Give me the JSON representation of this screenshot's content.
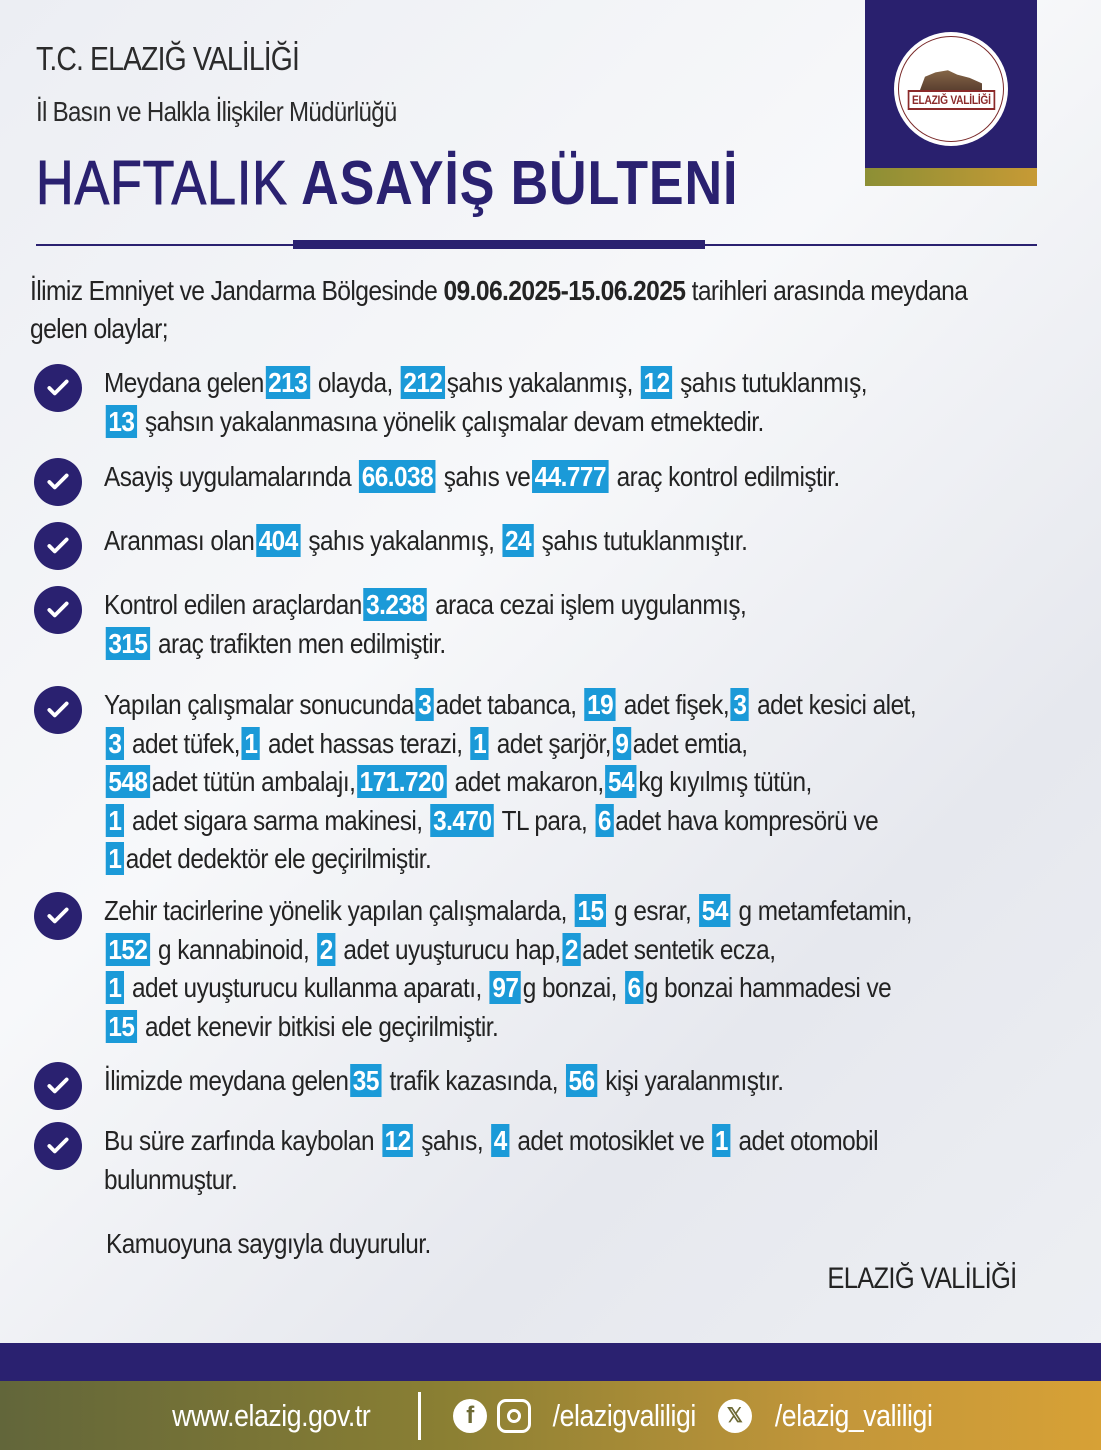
{
  "header": {
    "org": "T.C. ELAZIĞ VALİLİĞİ",
    "department": "İl Basın ve Halkla İlişkiler Müdürlüğü",
    "title_part1": "HAFTALIK",
    "title_part2": "ASAYİŞ BÜLTENİ",
    "logo_text": "ELAZIĞ VALİLİĞİ"
  },
  "intro": {
    "before": "İlimiz Emniyet ve Jandarma Bölgesinde ",
    "dates": "09.06.2025-15.06.2025",
    "after": " tarihleri arasında meydana",
    "line2": "gelen olaylar;"
  },
  "colors": {
    "navy": "#2a2170",
    "highlight": "#1b9ad8",
    "gold": "#c79a35"
  },
  "bullets": [
    {
      "lines": [
        [
          {
            "t": "Meydana gelen"
          },
          {
            "n": "213"
          },
          {
            "t": " olayda, "
          },
          {
            "n": "212"
          },
          {
            "t": "şahıs yakalanmış, "
          },
          {
            "n": "12"
          },
          {
            "t": " şahıs tutuklanmış,"
          }
        ],
        [
          {
            "n": "13"
          },
          {
            "t": " şahsın yakalanmasına yönelik çalışmalar devam etmektedir."
          }
        ]
      ]
    },
    {
      "lines": [
        [
          {
            "t": "Asayiş uygulamalarında "
          },
          {
            "n": "66.038"
          },
          {
            "t": " şahıs ve"
          },
          {
            "n": "44.777"
          },
          {
            "t": " araç kontrol edilmiştir."
          }
        ]
      ]
    },
    {
      "lines": [
        [
          {
            "t": "Aranması olan"
          },
          {
            "n": "404"
          },
          {
            "t": " şahıs yakalanmış, "
          },
          {
            "n": "24"
          },
          {
            "t": " şahıs tutuklanmıştır."
          }
        ]
      ]
    },
    {
      "lines": [
        [
          {
            "t": "Kontrol edilen araçlardan"
          },
          {
            "n": "3.238"
          },
          {
            "t": " araca cezai işlem uygulanmış,"
          }
        ],
        [
          {
            "n": "315"
          },
          {
            "t": " araç trafikten men edilmiştir."
          }
        ]
      ]
    },
    {
      "lines": [
        [
          {
            "t": "Yapılan çalışmalar sonucunda"
          },
          {
            "n": "3"
          },
          {
            "t": "adet tabanca, "
          },
          {
            "n": "19"
          },
          {
            "t": " adet fişek,"
          },
          {
            "n": "3"
          },
          {
            "t": " adet kesici alet,"
          }
        ],
        [
          {
            "n": "3"
          },
          {
            "t": " adet tüfek,"
          },
          {
            "n": "1"
          },
          {
            "t": " adet hassas terazi, "
          },
          {
            "n": "1"
          },
          {
            "t": " adet şarjör,"
          },
          {
            "n": "9"
          },
          {
            "t": "adet emtia,"
          }
        ],
        [
          {
            "n": "548"
          },
          {
            "t": "adet tütün ambalajı,"
          },
          {
            "n": "171.720"
          },
          {
            "t": " adet makaron,"
          },
          {
            "n": "54"
          },
          {
            "t": "kg kıyılmış tütün,"
          }
        ],
        [
          {
            "n": "1"
          },
          {
            "t": " adet sigara sarma makinesi, "
          },
          {
            "n": "3.470"
          },
          {
            "t": " TL para, "
          },
          {
            "n": "6"
          },
          {
            "t": "adet hava kompresörü ve"
          }
        ],
        [
          {
            "n": "1"
          },
          {
            "t": "adet dedektör ele geçirilmiştir."
          }
        ]
      ]
    },
    {
      "lines": [
        [
          {
            "t": "Zehir tacirlerine yönelik yapılan çalışmalarda, "
          },
          {
            "n": "15"
          },
          {
            "t": " g esrar, "
          },
          {
            "n": "54"
          },
          {
            "t": " g metamfetamin,"
          }
        ],
        [
          {
            "n": "152"
          },
          {
            "t": " g kannabinoid, "
          },
          {
            "n": "2"
          },
          {
            "t": " adet uyuşturucu hap,"
          },
          {
            "n": "2"
          },
          {
            "t": "adet sentetik ecza,"
          }
        ],
        [
          {
            "n": "1"
          },
          {
            "t": " adet uyuşturucu kullanma aparatı, "
          },
          {
            "n": "97"
          },
          {
            "t": "g bonzai, "
          },
          {
            "n": "6"
          },
          {
            "t": "g bonzai hammadesi ve"
          }
        ],
        [
          {
            "n": "15"
          },
          {
            "t": " adet kenevir bitkisi ele geçirilmiştir."
          }
        ]
      ]
    },
    {
      "lines": [
        [
          {
            "t": "İlimizde meydana gelen"
          },
          {
            "n": "35"
          },
          {
            "t": " trafik kazasında, "
          },
          {
            "n": "56"
          },
          {
            "t": " kişi yaralanmıştır."
          }
        ]
      ]
    },
    {
      "lines": [
        [
          {
            "t": "Bu süre zarfında kaybolan "
          },
          {
            "n": "12"
          },
          {
            "t": " şahıs, "
          },
          {
            "n": "4"
          },
          {
            "t": " adet motosiklet ve "
          },
          {
            "n": "1"
          },
          {
            "t": " adet otomobil"
          }
        ],
        [
          {
            "t": "bulunmuştur."
          }
        ]
      ]
    }
  ],
  "closing": "Kamuoyuna saygıyla duyurulur.",
  "signature": "ELAZIĞ VALİLİĞİ",
  "footer": {
    "website": "www.elazig.gov.tr",
    "social_handle": "/elazigvaliligi",
    "x_handle": "/elazig_valiligi",
    "icons": [
      "facebook-icon",
      "instagram-icon",
      "x-icon"
    ]
  }
}
